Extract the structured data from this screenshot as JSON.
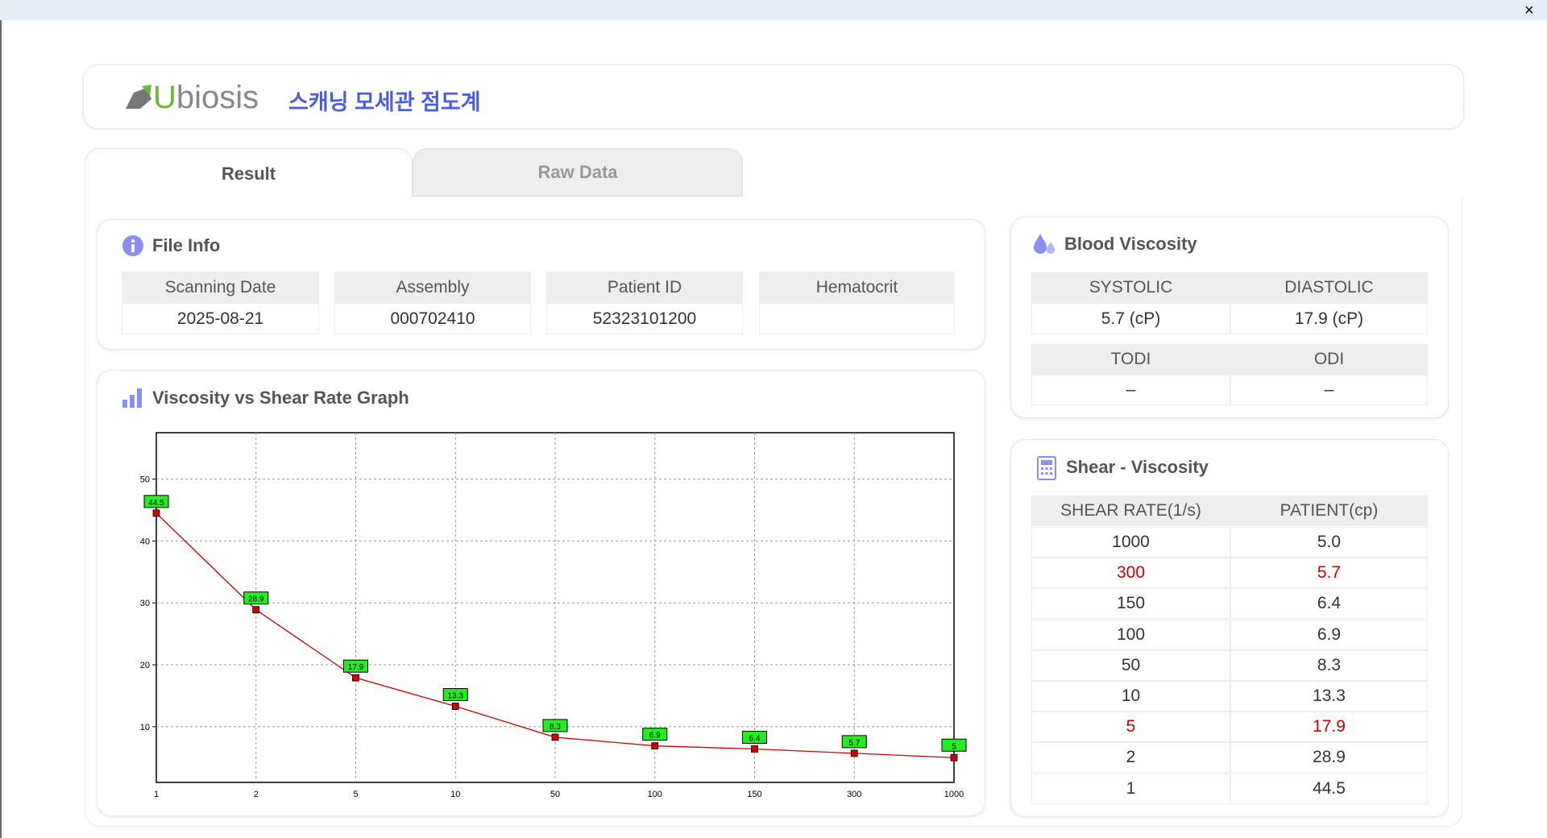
{
  "header": {
    "logo": "Ubiosis",
    "title": "스캐닝 모세관 점도계"
  },
  "tabs": [
    "Result",
    "Raw Data"
  ],
  "file_info": {
    "title": "File Info",
    "columns": [
      "Scanning Date",
      "Assembly",
      "Patient ID",
      "Hematocrit"
    ],
    "values": [
      "2025-08-21",
      "000702410",
      "52323101200"
    ]
  },
  "blood_viscosity": {
    "title": "Blood Viscosity",
    "headers": [
      "SYSTOLIC",
      "DIASTOLIC"
    ],
    "values": [
      "5.7 (cP)",
      "17.9 (cP)"
    ],
    "headers2": [
      "TODI",
      "ODI"
    ],
    "values2": [
      "–",
      "–"
    ]
  },
  "shear_viscosity": {
    "title": "Shear - Viscosity",
    "columns": [
      "SHEAR RATE(1/s)",
      "PATIENT(cp)"
    ],
    "highlight_color": "#cc0000",
    "rows": [
      {
        "shear": "1000",
        "patient": "5.0"
      },
      {
        "shear": "300",
        "patient": "5.7",
        "highlight": true
      },
      {
        "shear": "150",
        "patient": "6.4"
      },
      {
        "shear": "100",
        "patient": "6.9"
      },
      {
        "shear": "50",
        "patient": "8.3"
      },
      {
        "shear": "10",
        "patient": "13.3"
      },
      {
        "shear": "5",
        "patient": "17.9",
        "highlight": true
      },
      {
        "shear": "2",
        "patient": "28.9"
      },
      {
        "shear": "1",
        "patient": "44.5"
      }
    ]
  },
  "chart_data": {
    "type": "line",
    "title": "Viscosity vs Shear Rate Graph",
    "categories": [
      "1",
      "2",
      "5",
      "10",
      "50",
      "100",
      "150",
      "300",
      "1000"
    ],
    "values": [
      44.5,
      28.9,
      17.9,
      13.3,
      8.3,
      6.9,
      6.4,
      5.7,
      5
    ],
    "color": "#cc0000",
    "label_color": "#22ee22",
    "ylim": [
      1,
      57.5
    ],
    "yticks": [
      10,
      20,
      30,
      40,
      50
    ],
    "grid": true
  }
}
